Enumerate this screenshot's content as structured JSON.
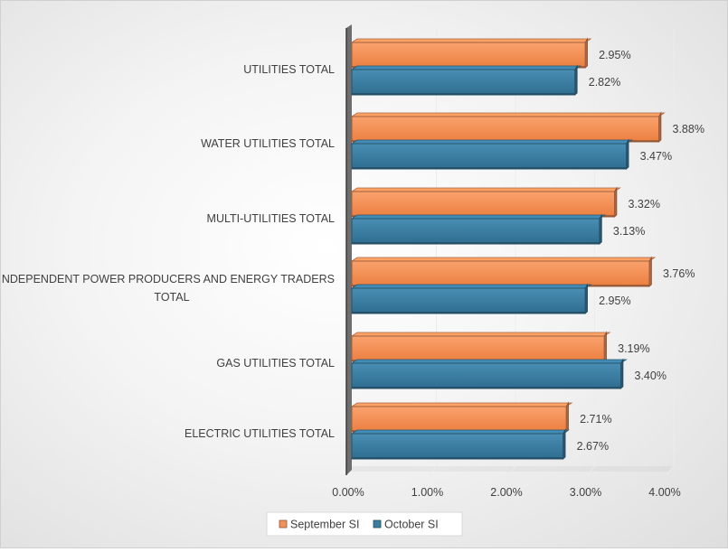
{
  "chart_data": {
    "type": "bar",
    "orientation": "horizontal",
    "style": "3d",
    "title": "",
    "xlabel": "",
    "ylabel": "",
    "categories": [
      "UTILITIES TOTAL",
      "WATER UTILITIES TOTAL",
      "MULTI-UTILITIES TOTAL",
      "INDEPENDENT POWER PRODUCERS AND ENERGY TRADERS TOTAL",
      "GAS UTILITIES TOTAL",
      "ELECTRIC UTILITIES TOTAL"
    ],
    "category_lines": [
      [
        "UTILITIES TOTAL"
      ],
      [
        "WATER UTILITIES TOTAL"
      ],
      [
        "MULTI-UTILITIES TOTAL"
      ],
      [
        "INDEPENDENT POWER PRODUCERS AND ENERGY TRADERS",
        "TOTAL"
      ],
      [
        "GAS UTILITIES TOTAL"
      ],
      [
        "ELECTRIC UTILITIES TOTAL"
      ]
    ],
    "series": [
      {
        "name": "September SI",
        "values": [
          2.95,
          3.88,
          3.32,
          3.76,
          3.19,
          2.71
        ],
        "labels": [
          "2.95%",
          "3.88%",
          "3.32%",
          "3.76%",
          "3.19%",
          "2.71%"
        ],
        "color": "#F4915A"
      },
      {
        "name": "October SI",
        "values": [
          2.82,
          3.47,
          3.13,
          2.95,
          3.4,
          2.67
        ],
        "labels": [
          "2.82%",
          "3.47%",
          "3.13%",
          "2.95%",
          "3.40%",
          "2.67%"
        ],
        "color": "#3A7EA3"
      }
    ],
    "xlim": [
      0,
      4
    ],
    "xticks": [
      0,
      1,
      2,
      3,
      4
    ],
    "xtick_labels": [
      "0.00%",
      "1.00%",
      "2.00%",
      "3.00%",
      "4.00%"
    ],
    "grid": true,
    "legend": "bottom"
  }
}
